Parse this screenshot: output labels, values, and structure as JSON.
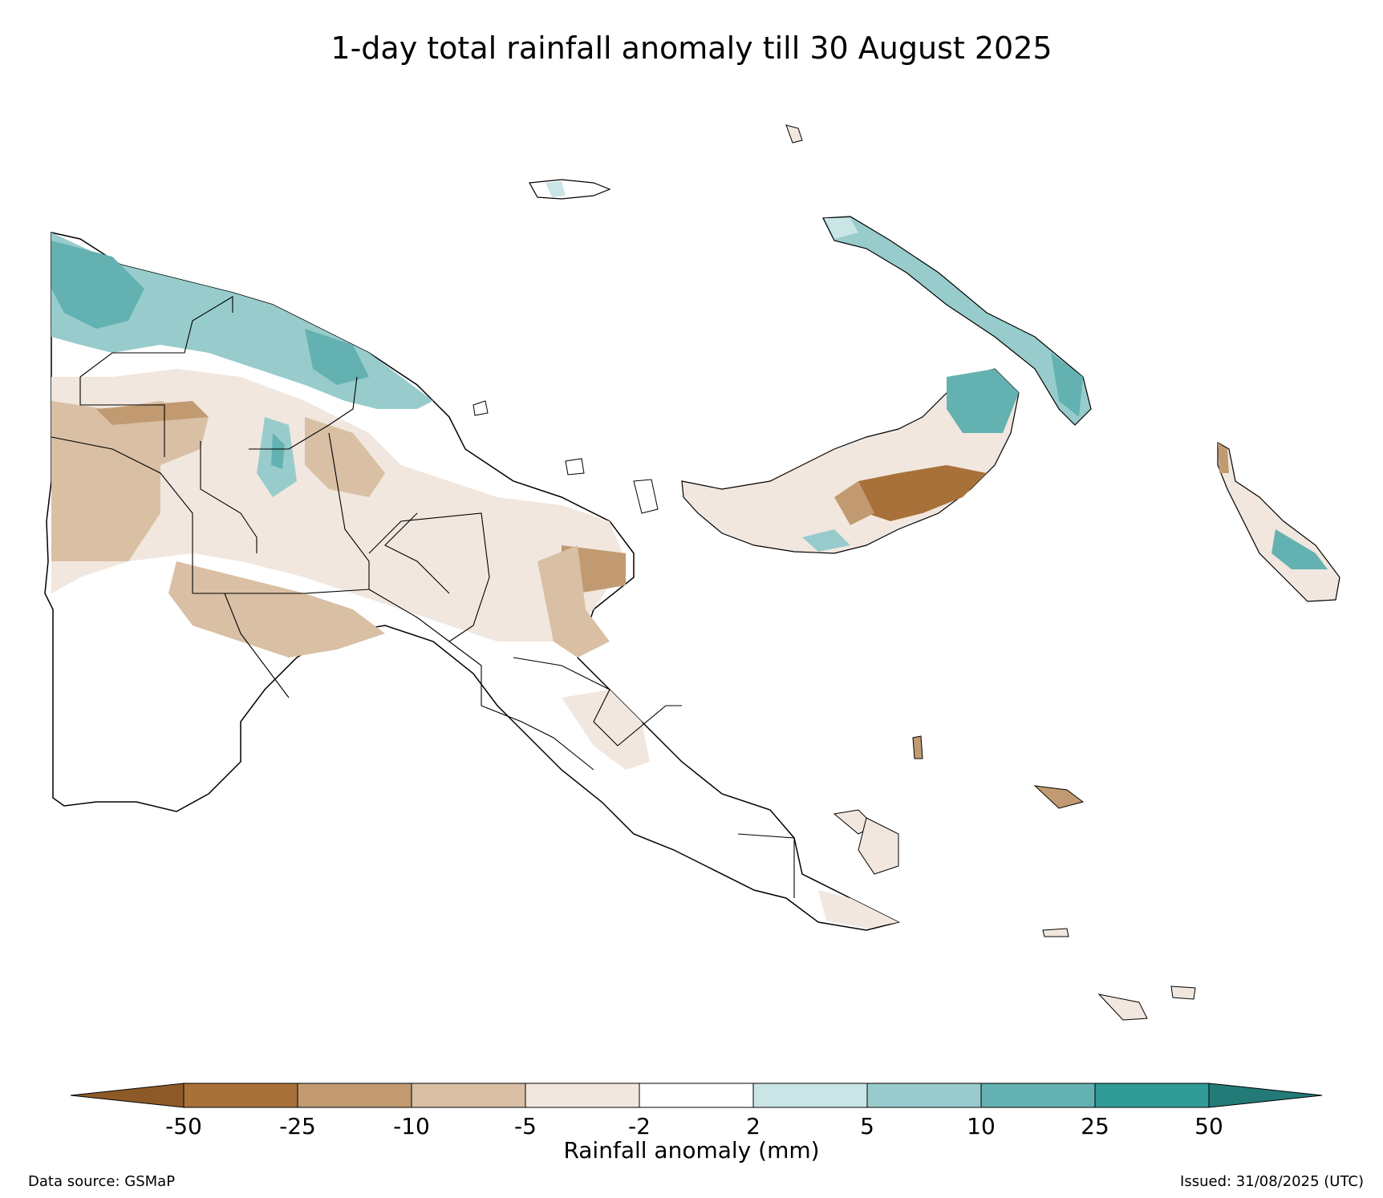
{
  "figure": {
    "title": "1-day total rainfall anomaly till 30 August 2025",
    "colorbar_label": "Rainfall anomaly (mm)",
    "data_source": "Data source: GSMaP",
    "issued": "Issued: 31/08/2025 (UTC)"
  },
  "colorbar": {
    "ticks": [
      "-50",
      "-25",
      "-10",
      "-5",
      "-2",
      "2",
      "5",
      "10",
      "25",
      "50"
    ],
    "colors": [
      "#a9713a",
      "#c19a71",
      "#d9bfa4",
      "#f1e7df",
      "#ffffff",
      "#cae5e5",
      "#98cccc",
      "#64b1b1",
      "#319b98"
    ],
    "extend_low": "#8d5a27",
    "extend_high": "#237a77"
  },
  "map": {
    "land_outline_color": "#000000",
    "regions": [
      {
        "id": "north-coast",
        "level": "5"
      },
      {
        "id": "sepik-band",
        "level": "-5"
      },
      {
        "id": "western-south",
        "level": "-5"
      },
      {
        "id": "south-fly",
        "level": "-2"
      },
      {
        "id": "east-peninsula",
        "level": "-2"
      },
      {
        "id": "east-tip-heavy",
        "level": "-25"
      },
      {
        "id": "new-britain-east",
        "level": "10"
      },
      {
        "id": "new-britain-central",
        "level": "-25"
      },
      {
        "id": "new-ireland",
        "level": "10"
      },
      {
        "id": "bougainville-north",
        "level": "-10"
      },
      {
        "id": "bougainville-south",
        "level": "10"
      }
    ]
  }
}
